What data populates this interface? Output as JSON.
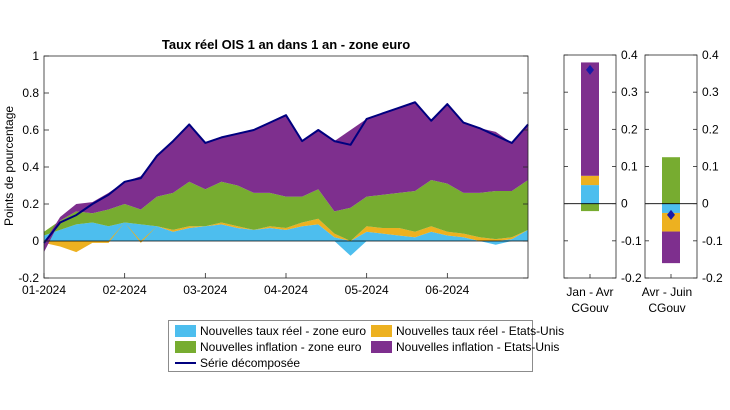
{
  "chart_data": {
    "type": "area",
    "main": {
      "title": "Taux réel OIS 1 an dans 1 an - zone euro",
      "ylabel": "Points de pourcentage",
      "ylim": [
        -0.2,
        1
      ],
      "yticks": [
        "-0.2",
        "0",
        "0.2",
        "0.4",
        "0.6",
        "0.8",
        "1"
      ],
      "xticks": [
        "01-2024",
        "02-2024",
        "03-2024",
        "04-2024",
        "05-2024",
        "06-2024"
      ],
      "x_month_fraction": [
        0,
        0.2,
        0.4,
        0.6,
        0.8,
        1,
        1.2,
        1.4,
        1.6,
        1.8,
        2,
        2.2,
        2.4,
        2.6,
        2.8,
        3,
        3.2,
        3.4,
        3.6,
        3.8,
        4,
        4.2,
        4.4,
        4.6,
        4.8,
        5,
        5.2,
        5.4,
        5.6,
        5.8,
        6
      ],
      "series": [
        {
          "name": "Nouvelles taux réel - zone euro",
          "color": "#4dbeee",
          "values": [
            0.03,
            0.06,
            0.09,
            0.1,
            0.08,
            0.1,
            0.09,
            0.08,
            0.05,
            0.07,
            0.08,
            0.09,
            0.07,
            0.06,
            0.07,
            0.06,
            0.08,
            0.09,
            0.02,
            -0.08,
            0.05,
            0.04,
            0.03,
            0.02,
            0.05,
            0.03,
            0.02,
            0.0,
            -0.02,
            0.01,
            0.06
          ]
        },
        {
          "name": "Nouvelles taux réel - Etats-Unis",
          "color": "#edb120",
          "values": [
            -0.01,
            -0.03,
            -0.06,
            -0.01,
            -0.01,
            0.0,
            -0.01,
            0.0,
            0.01,
            0.01,
            0.0,
            0.01,
            0.01,
            0.0,
            0.01,
            0.01,
            0.02,
            0.03,
            0.02,
            0.0,
            0.03,
            0.03,
            0.04,
            0.03,
            0.03,
            0.02,
            0.02,
            0.02,
            0.01,
            0.01,
            0.0
          ]
        },
        {
          "name": "Nouvelles inflation - zone euro",
          "color": "#77ac30",
          "values": [
            0.02,
            0.05,
            0.07,
            0.05,
            0.09,
            0.1,
            0.08,
            0.16,
            0.2,
            0.24,
            0.2,
            0.22,
            0.22,
            0.2,
            0.18,
            0.17,
            0.14,
            0.16,
            0.12,
            0.18,
            0.16,
            0.18,
            0.19,
            0.22,
            0.25,
            0.26,
            0.22,
            0.24,
            0.26,
            0.25,
            0.27
          ]
        },
        {
          "name": "Nouvelles inflation - Etats-Unis",
          "color": "#7e2f8e",
          "values": [
            -0.05,
            0.02,
            0.04,
            0.06,
            0.09,
            0.12,
            0.18,
            0.22,
            0.28,
            0.31,
            0.25,
            0.24,
            0.28,
            0.34,
            0.38,
            0.44,
            0.3,
            0.32,
            0.38,
            0.42,
            0.42,
            0.44,
            0.46,
            0.48,
            0.32,
            0.43,
            0.38,
            0.35,
            0.32,
            0.26,
            0.3
          ]
        },
        {
          "name": "Série décomposée",
          "color": "#00007f",
          "kind": "line",
          "values": [
            -0.01,
            0.1,
            0.14,
            0.2,
            0.25,
            0.32,
            0.34,
            0.46,
            0.54,
            0.63,
            0.53,
            0.56,
            0.58,
            0.6,
            0.64,
            0.68,
            0.54,
            0.6,
            0.54,
            0.52,
            0.66,
            0.69,
            0.72,
            0.75,
            0.65,
            0.74,
            0.64,
            0.61,
            0.57,
            0.53,
            0.63
          ]
        }
      ]
    },
    "panels": [
      {
        "xlabel": "Jan - Avr",
        "sublabel": "CGouv",
        "ylim": [
          -0.2,
          0.4
        ],
        "yticks": [
          "-0.2",
          "-0.1",
          "0",
          "0.1",
          "0.2",
          "0.3",
          "0.4"
        ],
        "segments": [
          {
            "name": "Nouvelles taux réel - zone euro",
            "color": "#4dbeee",
            "from": 0,
            "to": 0.05
          },
          {
            "name": "Nouvelles taux réel - Etats-Unis",
            "color": "#edb120",
            "from": 0.05,
            "to": 0.075
          },
          {
            "name": "Nouvelles inflation - Etats-Unis",
            "color": "#7e2f8e",
            "from": 0.075,
            "to": 0.38
          },
          {
            "name": "Nouvelles inflation - zone euro",
            "color": "#77ac30",
            "from": -0.02,
            "to": 0
          }
        ],
        "total": 0.36
      },
      {
        "xlabel": "Avr - Juin",
        "sublabel": "CGouv",
        "ylim": [
          -0.2,
          0.4
        ],
        "yticks": [
          "-0.2",
          "-0.1",
          "0",
          "0.1",
          "0.2",
          "0.3",
          "0.4"
        ],
        "segments": [
          {
            "name": "Nouvelles inflation - zone euro",
            "color": "#77ac30",
            "from": 0,
            "to": 0.125
          },
          {
            "name": "Nouvelles taux réel - zone euro",
            "color": "#4dbeee",
            "from": -0.025,
            "to": 0
          },
          {
            "name": "Nouvelles taux réel - Etats-Unis",
            "color": "#edb120",
            "from": -0.075,
            "to": -0.025
          },
          {
            "name": "Nouvelles inflation - Etats-Unis",
            "color": "#7e2f8e",
            "from": -0.16,
            "to": -0.075
          }
        ],
        "total": -0.03
      }
    ],
    "legend": {
      "position": "bottom",
      "items": [
        {
          "label": "Nouvelles taux réel - zone euro",
          "color": "#4dbeee",
          "kind": "patch"
        },
        {
          "label": "Nouvelles taux réel - Etats-Unis",
          "color": "#edb120",
          "kind": "patch"
        },
        {
          "label": "Nouvelles inflation - zone euro",
          "color": "#77ac30",
          "kind": "patch"
        },
        {
          "label": "Nouvelles inflation - Etats-Unis",
          "color": "#7e2f8e",
          "kind": "patch"
        },
        {
          "label": "Série décomposée",
          "color": "#00007f",
          "kind": "line"
        }
      ]
    },
    "grid": false
  }
}
